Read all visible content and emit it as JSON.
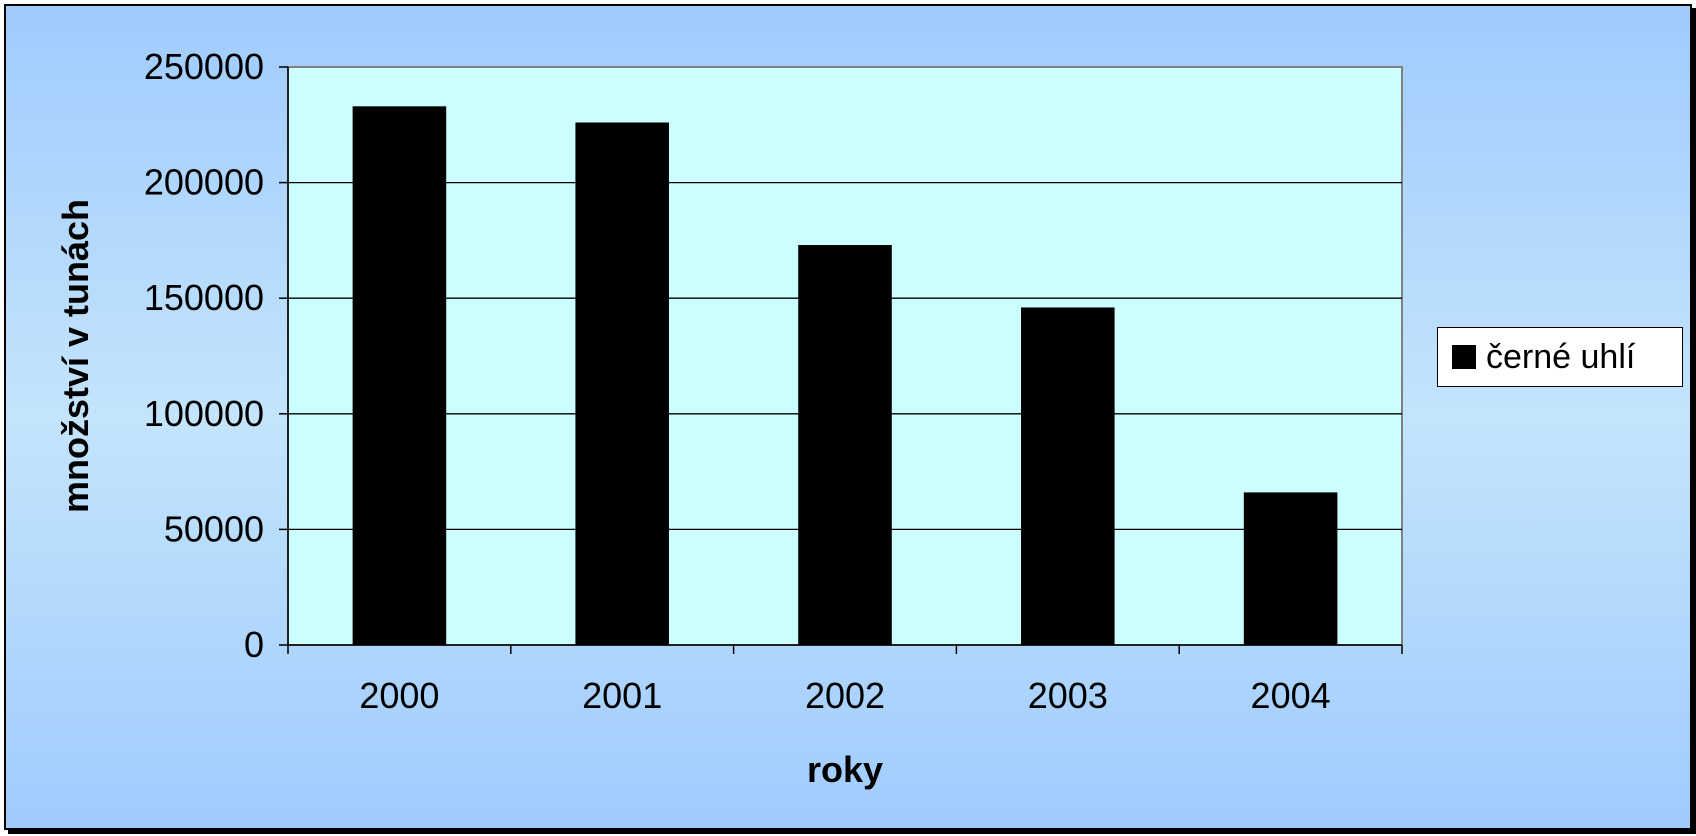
{
  "chart_data": {
    "type": "bar",
    "categories": [
      "2000",
      "2001",
      "2002",
      "2003",
      "2004"
    ],
    "series": [
      {
        "name": "černé uhlí",
        "values": [
          233000,
          226000,
          173000,
          146000,
          66000
        ]
      }
    ],
    "title": "",
    "xlabel": "roky",
    "ylabel": "množství v tunách",
    "ylim": [
      0,
      250000
    ],
    "yticks": [
      "0",
      "50000",
      "100000",
      "150000",
      "200000",
      "250000"
    ],
    "grid": true,
    "legend_position": "right",
    "colors": {
      "bar": "#000000",
      "plot_background": "#ccffff",
      "gridline": "#000000"
    }
  }
}
